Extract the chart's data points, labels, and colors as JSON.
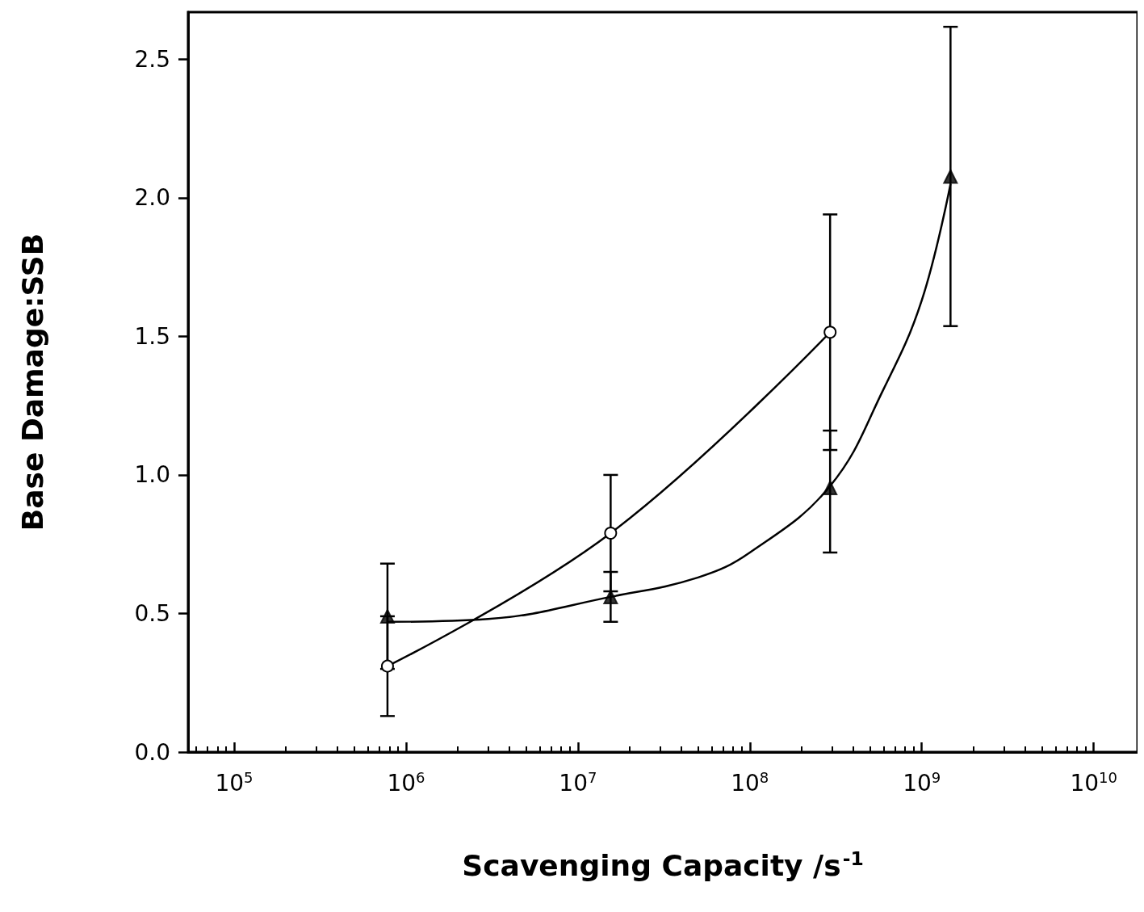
{
  "chart_data": {
    "type": "scatter",
    "xlabel": "Scavenging Capacity /s$^{-1}$",
    "ylabel": "Base Damage:SSB",
    "log": "x",
    "grid": false,
    "xlim": [
      54000,
      18000000000
    ],
    "xticks": [
      {
        "value": 100000,
        "label": "10$^{5}$"
      },
      {
        "value": 1000000,
        "label": "10$^{6}$"
      },
      {
        "value": 10000000,
        "label": "10$^{7}$"
      },
      {
        "value": 100000000,
        "label": "10$^{8}$"
      },
      {
        "value": 1000000000,
        "label": "10$^{9}$"
      },
      {
        "value": 10000000000,
        "label": "10$^{10}$"
      }
    ],
    "ylim": [
      0,
      2.67
    ],
    "yticks": [
      {
        "value": 0,
        "label": "0.0"
      },
      {
        "value": 0.5,
        "label": "0.5"
      },
      {
        "value": 1,
        "label": "1.0"
      },
      {
        "value": 1.5,
        "label": "1.5"
      },
      {
        "value": 2,
        "label": "2.0"
      },
      {
        "value": 2.5,
        "label": "2.5"
      }
    ],
    "series": [
      {
        "type": "line",
        "color": "#000000",
        "marker": "circle",
        "x": [
          780000,
          15500000,
          293000000
        ],
        "values": [
          0.31,
          0.79,
          1.515
        ],
        "errors": [
          0.18,
          0.21,
          [
            1.09,
            1.94
          ]
        ]
      },
      {
        "color": "#000000",
        "marker": "triangle",
        "x": [
          780000,
          15500000,
          293000000,
          1470000000
        ],
        "values": [
          0.49,
          0.56,
          0.953,
          2.077
        ],
        "errors": [
          0.19,
          0.09,
          [
            0.72,
            1.16
          ],
          0.54
        ]
      },
      {
        "type": "line",
        "color": "#000000",
        "marker": "none",
        "x": [
          780000,
          3000000,
          15500000,
          50000000,
          100000000,
          293000000,
          600000000,
          1000000000,
          1470000000
        ],
        "values": [
          0.47,
          0.48,
          0.56,
          0.63,
          0.72,
          0.96,
          1.31,
          1.63,
          2.05
        ]
      }
    ]
  }
}
